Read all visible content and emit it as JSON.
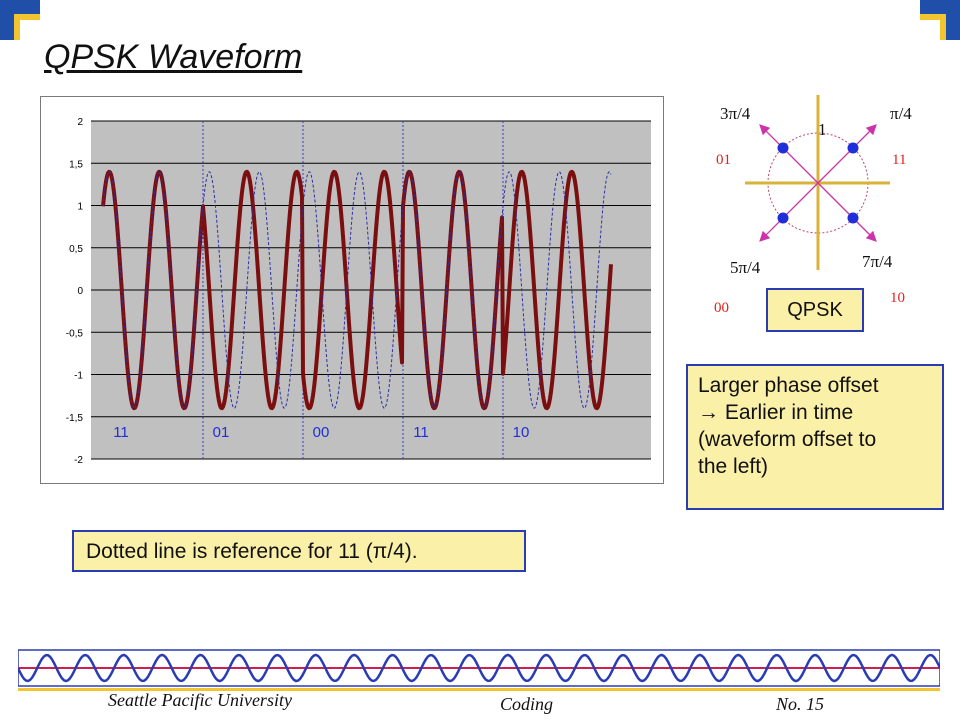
{
  "slide": {
    "title": "QPSK Waveform",
    "footer": {
      "institution": "Seattle Pacific University",
      "topic": "Coding",
      "page": "No. 15"
    }
  },
  "chart_data": {
    "type": "line",
    "ylim": [
      -2,
      2
    ],
    "yticks": [
      "2",
      "1,5",
      "1",
      "0,5",
      "0",
      "-0,5",
      "-1",
      "-1,5",
      "-2"
    ],
    "bit_labels": [
      "11",
      "01",
      "00",
      "11",
      "10"
    ],
    "amplitude": 1.4,
    "cycles_per_symbol": 2,
    "series": [
      {
        "style": "solid",
        "phases_deg": [
          45,
          135,
          225,
          45,
          315
        ],
        "color": "#7b0f10"
      },
      {
        "style": "dotted",
        "phases_deg": [
          45,
          45,
          45,
          45,
          45
        ],
        "color": "#2b2fa8"
      }
    ],
    "grid": true,
    "background": "#c0c0c0"
  },
  "constellation": {
    "labels": {
      "top_left": "3π/4",
      "top_right": "π/4",
      "bottom_left": "5π/4",
      "bottom_right": "7π/4",
      "radius": "1"
    },
    "bits": {
      "top_left": "01",
      "top_right": "11",
      "bottom_left": "00",
      "bottom_right": "10"
    },
    "box_label": "QPSK"
  },
  "notes": {
    "phase_lines": [
      "Larger phase offset",
      "→ Earlier in time",
      "(waveform offset to",
      "the left)"
    ],
    "dotted_ref": "Dotted line is reference for 11 (π/4)."
  },
  "colors": {
    "accent_yellow": "#f2c530",
    "box_fill": "#fbf0a8",
    "box_border": "#2a3cb4",
    "bit_red": "#e0221e",
    "arrow_magenta": "#cc33aa"
  }
}
